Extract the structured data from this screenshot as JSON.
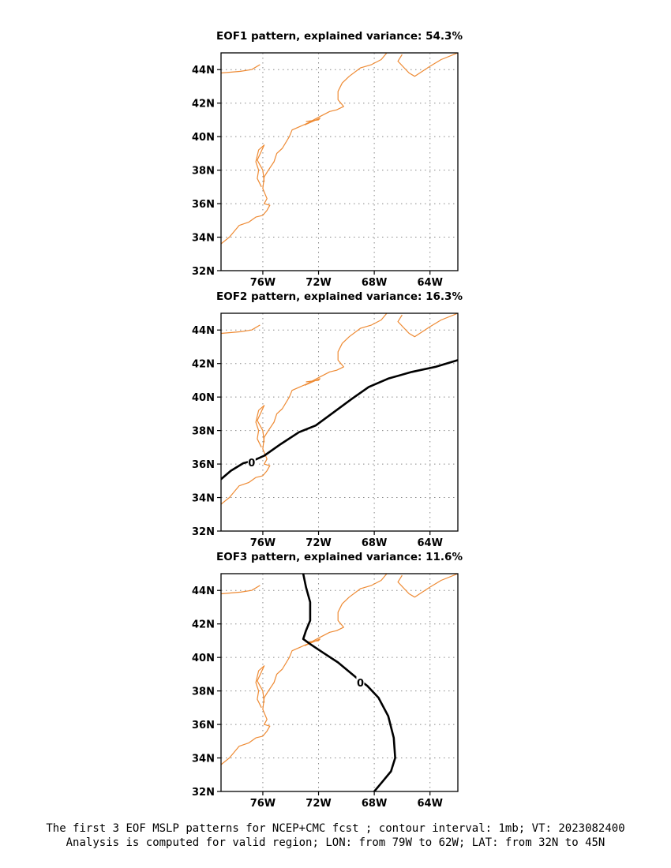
{
  "chart_data": [
    {
      "type": "map-contour",
      "title": "EOF1 pattern, explained variance: 54.3%",
      "x_ticks": [
        -76,
        -72,
        -68,
        -64
      ],
      "x_tick_labels": [
        "76W",
        "72W",
        "68W",
        "64W"
      ],
      "y_ticks": [
        32,
        34,
        36,
        38,
        40,
        42,
        44
      ],
      "y_tick_labels": [
        "32N",
        "34N",
        "36N",
        "38N",
        "40N",
        "42N",
        "44N"
      ],
      "xlim": [
        -79,
        -62
      ],
      "ylim": [
        32,
        45
      ],
      "grid": true,
      "contours": []
    },
    {
      "type": "map-contour",
      "title": "EOF2 pattern, explained variance: 16.3%",
      "x_ticks": [
        -76,
        -72,
        -68,
        -64
      ],
      "x_tick_labels": [
        "76W",
        "72W",
        "68W",
        "64W"
      ],
      "y_ticks": [
        32,
        34,
        36,
        38,
        40,
        42,
        44
      ],
      "y_tick_labels": [
        "32N",
        "34N",
        "36N",
        "38N",
        "40N",
        "42N",
        "44N"
      ],
      "xlim": [
        -79,
        -62
      ],
      "ylim": [
        32,
        45
      ],
      "grid": true,
      "contours": [
        {
          "value": 0,
          "label": "0",
          "label_at": [
            -76.8,
            36.1
          ],
          "points": [
            [
              -79,
              35.1
            ],
            [
              -78.3,
              35.6
            ],
            [
              -77.4,
              36.05
            ],
            [
              -76.7,
              36.2
            ],
            [
              -75.9,
              36.5
            ],
            [
              -74.7,
              37.2
            ],
            [
              -73.4,
              37.9
            ],
            [
              -72.2,
              38.3
            ],
            [
              -70.9,
              39.1
            ],
            [
              -69.6,
              39.9
            ],
            [
              -68.4,
              40.6
            ],
            [
              -67.0,
              41.1
            ],
            [
              -65.3,
              41.5
            ],
            [
              -63.6,
              41.8
            ],
            [
              -62,
              42.2
            ]
          ]
        }
      ]
    },
    {
      "type": "map-contour",
      "title": "EOF3 pattern, explained variance: 11.6%",
      "x_ticks": [
        -76,
        -72,
        -68,
        -64
      ],
      "x_tick_labels": [
        "76W",
        "72W",
        "68W",
        "64W"
      ],
      "y_ticks": [
        32,
        34,
        36,
        38,
        40,
        42,
        44
      ],
      "y_tick_labels": [
        "32N",
        "34N",
        "36N",
        "38N",
        "40N",
        "42N",
        "44N"
      ],
      "xlim": [
        -79,
        -62
      ],
      "ylim": [
        32,
        45
      ],
      "grid": true,
      "contours": [
        {
          "value": 0,
          "label": "0",
          "label_at": [
            -69.0,
            38.5
          ],
          "points": [
            [
              -73.1,
              45
            ],
            [
              -72.9,
              44.2
            ],
            [
              -72.6,
              43.3
            ],
            [
              -72.6,
              42.2
            ],
            [
              -72.9,
              41.6
            ],
            [
              -73.1,
              41.1
            ],
            [
              -72.6,
              40.8
            ],
            [
              -71.7,
              40.3
            ],
            [
              -70.6,
              39.7
            ],
            [
              -69.3,
              38.8
            ],
            [
              -68.5,
              38.3
            ],
            [
              -67.7,
              37.6
            ],
            [
              -67.0,
              36.5
            ],
            [
              -66.6,
              35.2
            ],
            [
              -66.5,
              34.0
            ],
            [
              -66.8,
              33.2
            ],
            [
              -67.4,
              32.6
            ],
            [
              -68.0,
              32
            ]
          ]
        }
      ]
    }
  ],
  "coastline": [
    [
      [
        -79,
        33.6
      ],
      [
        -78.4,
        34.0
      ],
      [
        -77.7,
        34.7
      ],
      [
        -77.0,
        34.9
      ],
      [
        -76.5,
        35.2
      ],
      [
        -76.0,
        35.3
      ],
      [
        -75.7,
        35.6
      ],
      [
        -75.5,
        35.9
      ],
      [
        -75.9,
        36.0
      ],
      [
        -75.7,
        36.3
      ],
      [
        -76.0,
        36.9
      ],
      [
        -75.9,
        37.6
      ],
      [
        -75.6,
        38.0
      ],
      [
        -75.2,
        38.5
      ],
      [
        -75.0,
        39.0
      ],
      [
        -74.6,
        39.3
      ],
      [
        -74.1,
        40.0
      ],
      [
        -73.9,
        40.4
      ],
      [
        -72.8,
        40.8
      ],
      [
        -71.9,
        41.2
      ],
      [
        -71.2,
        41.5
      ],
      [
        -70.7,
        41.6
      ],
      [
        -70.2,
        41.8
      ],
      [
        -70.6,
        42.2
      ],
      [
        -70.6,
        42.7
      ],
      [
        -70.3,
        43.2
      ],
      [
        -69.8,
        43.6
      ],
      [
        -69.0,
        44.1
      ],
      [
        -68.2,
        44.3
      ],
      [
        -67.5,
        44.6
      ],
      [
        -67.1,
        45.0
      ]
    ],
    [
      [
        -66.0,
        44.9
      ],
      [
        -66.3,
        44.5
      ],
      [
        -65.5,
        43.8
      ],
      [
        -65.1,
        43.6
      ],
      [
        -64.0,
        44.2
      ],
      [
        -63.2,
        44.6
      ],
      [
        -62.0,
        45.0
      ]
    ],
    [
      [
        -72.9,
        40.9
      ],
      [
        -72.0,
        41.0
      ],
      [
        -71.9,
        41.1
      ],
      [
        -73.0,
        40.7
      ]
    ],
    [
      [
        -76.1,
        37.0
      ],
      [
        -76.4,
        37.5
      ],
      [
        -76.3,
        38.0
      ],
      [
        -76.5,
        38.5
      ],
      [
        -76.3,
        39.2
      ],
      [
        -75.9,
        39.5
      ],
      [
        -76.4,
        38.6
      ],
      [
        -76.0,
        38.0
      ],
      [
        -75.9,
        37.3
      ]
    ],
    [
      [
        -79,
        43.8
      ],
      [
        -77.6,
        43.9
      ],
      [
        -76.8,
        44.0
      ],
      [
        -76.2,
        44.3
      ]
    ]
  ],
  "colors": {
    "coast": "#ee8a33",
    "contour": "#000000",
    "grid": "#888888"
  },
  "caption": {
    "line1": "The first 3 EOF MSLP patterns for NCEP+CMC fcst ; contour interval: 1mb; VT: 2023082400",
    "line2": "Analysis is computed for valid region; LON: from 79W to 62W; LAT: from 32N to 45N"
  }
}
